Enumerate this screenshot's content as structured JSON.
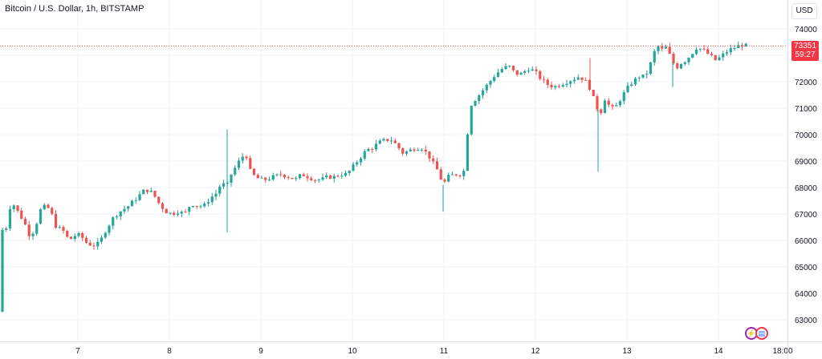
{
  "header": {
    "symbol_title": "Bitcoin / U.S. Dollar, 1h, BITSTAMP"
  },
  "toolbar": {
    "currency_button": "USD"
  },
  "last_price": {
    "value": "73351",
    "countdown": "59:27",
    "color": "#f23645"
  },
  "colors": {
    "up": "#26a69a",
    "down": "#ef5350",
    "grid": "#f0f3fa",
    "axis_text": "#131722"
  },
  "icons": [
    "bolt-icon",
    "us-flag-icon"
  ],
  "chart_data": {
    "type": "candlestick",
    "title": "Bitcoin / U.S. Dollar, 1h, BITSTAMP",
    "y_ticks": [
      63000,
      64000,
      65000,
      66000,
      67000,
      68000,
      69000,
      70000,
      71000,
      72000,
      73000,
      74000
    ],
    "x_ticks": [
      "7",
      "8",
      "9",
      "10",
      "11",
      "12",
      "13",
      "14",
      "18:00"
    ],
    "ylim": [
      62500,
      74400
    ],
    "grid": true,
    "last_price": 73351,
    "price_path": [
      [
        0,
        63300
      ],
      [
        3,
        66400
      ],
      [
        8,
        66500
      ],
      [
        14,
        67500
      ],
      [
        22,
        67100
      ],
      [
        30,
        66700
      ],
      [
        38,
        66100
      ],
      [
        45,
        66600
      ],
      [
        52,
        67300
      ],
      [
        62,
        67200
      ],
      [
        70,
        66500
      ],
      [
        78,
        66400
      ],
      [
        86,
        66000
      ],
      [
        94,
        66200
      ],
      [
        100,
        66200
      ],
      [
        108,
        65900
      ],
      [
        116,
        65800
      ],
      [
        124,
        65900
      ],
      [
        130,
        66300
      ],
      [
        136,
        66600
      ],
      [
        142,
        66900
      ],
      [
        150,
        67100
      ],
      [
        160,
        67300
      ],
      [
        170,
        67600
      ],
      [
        180,
        67900
      ],
      [
        186,
        67900
      ],
      [
        192,
        67700
      ],
      [
        198,
        67400
      ],
      [
        206,
        67100
      ],
      [
        214,
        67000
      ],
      [
        222,
        67100
      ],
      [
        230,
        67000
      ],
      [
        238,
        67400
      ],
      [
        246,
        67300
      ],
      [
        254,
        67300
      ],
      [
        262,
        67600
      ],
      [
        270,
        67800
      ],
      [
        276,
        68200
      ],
      [
        282,
        68000
      ],
      [
        288,
        68500
      ],
      [
        294,
        68800
      ],
      [
        300,
        69100
      ],
      [
        306,
        69300
      ],
      [
        312,
        68600
      ],
      [
        318,
        68400
      ],
      [
        324,
        68300
      ],
      [
        332,
        68300
      ],
      [
        340,
        68400
      ],
      [
        350,
        68500
      ],
      [
        360,
        68400
      ],
      [
        368,
        68300
      ],
      [
        376,
        68500
      ],
      [
        384,
        68400
      ],
      [
        392,
        68300
      ],
      [
        400,
        68300
      ],
      [
        408,
        68400
      ],
      [
        416,
        68400
      ],
      [
        424,
        68500
      ],
      [
        432,
        68500
      ],
      [
        440,
        68800
      ],
      [
        448,
        69100
      ],
      [
        456,
        69400
      ],
      [
        464,
        69500
      ],
      [
        472,
        69700
      ],
      [
        480,
        69800
      ],
      [
        488,
        69800
      ],
      [
        494,
        69600
      ],
      [
        502,
        69300
      ],
      [
        510,
        69400
      ],
      [
        518,
        69500
      ],
      [
        526,
        69500
      ],
      [
        534,
        69200
      ],
      [
        540,
        68900
      ],
      [
        546,
        68600
      ],
      [
        552,
        68100
      ],
      [
        558,
        68400
      ],
      [
        566,
        68500
      ],
      [
        574,
        68500
      ],
      [
        580,
        68700
      ],
      [
        584,
        70900
      ],
      [
        588,
        71200
      ],
      [
        594,
        71400
      ],
      [
        602,
        71700
      ],
      [
        610,
        72000
      ],
      [
        618,
        72300
      ],
      [
        626,
        72500
      ],
      [
        634,
        72600
      ],
      [
        642,
        72300
      ],
      [
        650,
        72300
      ],
      [
        658,
        72500
      ],
      [
        666,
        72400
      ],
      [
        674,
        72100
      ],
      [
        682,
        71900
      ],
      [
        690,
        71800
      ],
      [
        698,
        71900
      ],
      [
        706,
        72000
      ],
      [
        714,
        72100
      ],
      [
        722,
        72200
      ],
      [
        730,
        72000
      ],
      [
        736,
        71700
      ],
      [
        742,
        71100
      ],
      [
        748,
        70800
      ],
      [
        754,
        71400
      ],
      [
        760,
        71000
      ],
      [
        766,
        71000
      ],
      [
        772,
        71300
      ],
      [
        780,
        71700
      ],
      [
        788,
        72000
      ],
      [
        796,
        72200
      ],
      [
        804,
        72200
      ],
      [
        812,
        72800
      ],
      [
        818,
        73400
      ],
      [
        824,
        73200
      ],
      [
        830,
        73300
      ],
      [
        836,
        72900
      ],
      [
        842,
        72500
      ],
      [
        848,
        72700
      ],
      [
        854,
        72800
      ],
      [
        860,
        73000
      ],
      [
        868,
        73300
      ],
      [
        876,
        73200
      ],
      [
        884,
        73000
      ],
      [
        892,
        72800
      ],
      [
        900,
        73000
      ],
      [
        908,
        73200
      ],
      [
        916,
        73300
      ],
      [
        924,
        73400
      ],
      [
        930,
        73351
      ]
    ],
    "spikes": [
      {
        "x": 283,
        "low": 66300,
        "high": 70200
      },
      {
        "x": 552,
        "low": 67100
      },
      {
        "x": 735,
        "high": 72900
      },
      {
        "x": 745,
        "low": 68600
      },
      {
        "x": 838,
        "low": 71800
      }
    ]
  }
}
